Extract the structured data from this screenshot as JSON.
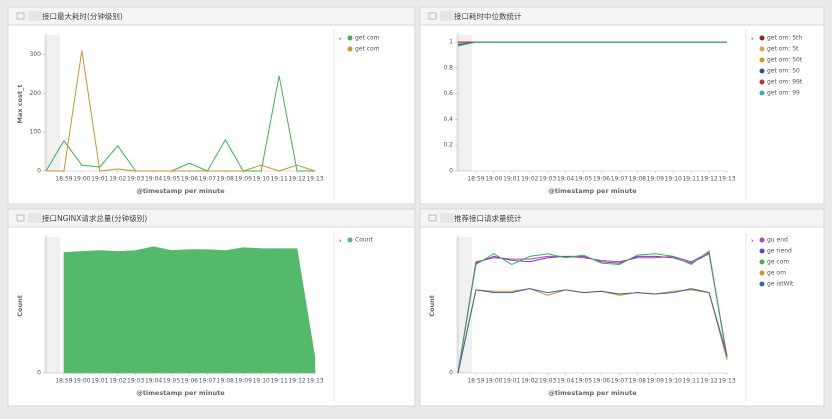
{
  "chart_data": [
    {
      "type": "line",
      "title": "接口最大耗时(分钟级别)",
      "y_label": "Max cost_t",
      "x_label": "@timestamp per minute",
      "categories": [
        null,
        "18:59",
        "19:00",
        "19:01",
        "19:02",
        "19:03",
        "19:04",
        "19:05",
        "19:06",
        "19:07",
        "19:08",
        "19:09",
        "19:10",
        "19:11",
        "19:12",
        "19:13"
      ],
      "ylim": [
        0,
        345
      ],
      "yticks": [
        0,
        100,
        200,
        300
      ],
      "series": [
        {
          "name": "get com",
          "color": "#3cb44b",
          "values": [
            0,
            78,
            15,
            10,
            65,
            0,
            0,
            0,
            20,
            0,
            80,
            0,
            0,
            245,
            0,
            0
          ]
        },
        {
          "name": "get com",
          "color": "#c8952c",
          "values": [
            0,
            0,
            310,
            0,
            5,
            0,
            0,
            0,
            0,
            0,
            0,
            0,
            15,
            0,
            15,
            0
          ]
        }
      ]
    },
    {
      "type": "line",
      "title": "接口耗时中位数统计",
      "x_label": "@timestamp per minute",
      "categories": [
        null,
        "18:59",
        "19:00",
        "19:01",
        "19:02",
        "19:03",
        "19:04",
        "19:05",
        "19:06",
        "19:07",
        "19:08",
        "19:09",
        "19:10",
        "19:11",
        "19:12",
        "19:13"
      ],
      "ylim": [
        0,
        1.04
      ],
      "yticks": [
        0,
        0.2,
        0.4,
        0.6,
        0.8,
        1
      ],
      "series": [
        {
          "name": "get om: 5th",
          "color": "#8b2b1e",
          "values": [
            1,
            1,
            1,
            1,
            1,
            1,
            1,
            1,
            1,
            1,
            1,
            1,
            1,
            1,
            1,
            1
          ]
        },
        {
          "name": "get om: 5t",
          "color": "#e0a040",
          "values": [
            0.99,
            1,
            1,
            1,
            1,
            1,
            1,
            1,
            1,
            1,
            1,
            1,
            1,
            1,
            1,
            1
          ]
        },
        {
          "name": "get om: 50t",
          "color": "#c8a020",
          "values": [
            0.98,
            1,
            1,
            1,
            1,
            1,
            1,
            1,
            1,
            1,
            1,
            1,
            1,
            1,
            1,
            1
          ]
        },
        {
          "name": "get om: 50",
          "color": "#3050a0",
          "values": [
            0.98,
            1,
            1,
            1,
            1,
            1,
            1,
            1,
            1,
            1,
            1,
            1,
            1,
            1,
            1,
            1
          ]
        },
        {
          "name": "get om: 99t",
          "color": "#c03030",
          "values": [
            1,
            1,
            1,
            1,
            1,
            1,
            1,
            1,
            1,
            1,
            1,
            1,
            1,
            1,
            1,
            1
          ]
        },
        {
          "name": "get om: 99",
          "color": "#30b0b0",
          "values": [
            0.97,
            1,
            1,
            1,
            1,
            1,
            1,
            1,
            1,
            1,
            1,
            1,
            1,
            1,
            1,
            1
          ]
        }
      ]
    },
    {
      "type": "area",
      "title": "接口NGINX请求总量(分钟级别)",
      "y_label": "Count",
      "x_label": "@timestamp per minute",
      "categories": [
        null,
        "18:59",
        "19:00",
        "19:01",
        "19:02",
        "19:03",
        "19:04",
        "19:05",
        "19:06",
        "19:07",
        "19:08",
        "19:09",
        "19:10",
        "19:11",
        "19:12",
        "19:13"
      ],
      "ylim": [
        0,
        70
      ],
      "yticks": [
        0
      ],
      "series": [
        {
          "name": "Count",
          "color": "#54b96a",
          "values": [
            null,
            63,
            63.5,
            64,
            63.5,
            64,
            66,
            64,
            64.5,
            64.5,
            64,
            65.5,
            65,
            65,
            65,
            8
          ]
        }
      ]
    },
    {
      "type": "line",
      "title": "推荐接口请求量统计",
      "y_label": "Count",
      "x_label": "@timestamp per minute",
      "categories": [
        null,
        "18:59",
        "19:00",
        "19:01",
        "19:02",
        "19:03",
        "19:04",
        "19:05",
        "19:06",
        "19:07",
        "19:08",
        "19:09",
        "19:10",
        "19:11",
        "19:12",
        "19:13"
      ],
      "ylim": [
        0,
        100
      ],
      "yticks": [
        0
      ],
      "series": [
        {
          "name": "gu end",
          "color": "#c040c0",
          "values": [
            0,
            83,
            86,
            85,
            85,
            87,
            87,
            86,
            84,
            83,
            86,
            86,
            87,
            83,
            90,
            12
          ]
        },
        {
          "name": "ge riend",
          "color": "#7040b0",
          "values": [
            0,
            82,
            87,
            84,
            83,
            86,
            87,
            87,
            83,
            82,
            87,
            87,
            86,
            82,
            89,
            12
          ]
        },
        {
          "name": "ge com",
          "color": "#40b050",
          "values": [
            0,
            81,
            89,
            81,
            87,
            89,
            86,
            88,
            82,
            81,
            88,
            89,
            87,
            81,
            91,
            10
          ]
        },
        {
          "name": "ge om",
          "color": "#d09020",
          "values": [
            0,
            62,
            61,
            61,
            63,
            58,
            62,
            60,
            61,
            58,
            60,
            59,
            61,
            62,
            60,
            10
          ]
        },
        {
          "name": "ge istWit",
          "color": "#4060b0",
          "values": [
            0,
            62,
            60,
            60,
            63,
            60,
            62,
            60,
            61,
            59,
            60,
            59,
            60,
            63,
            60,
            13
          ]
        }
      ]
    }
  ]
}
